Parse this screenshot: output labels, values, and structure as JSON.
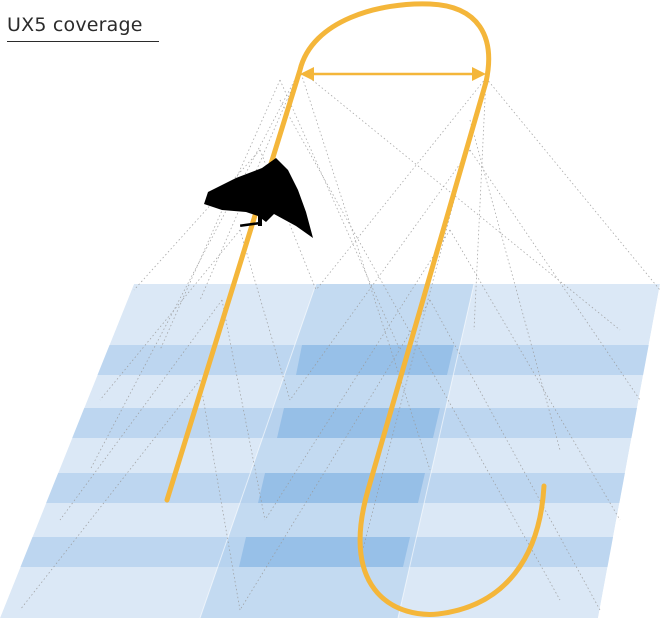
{
  "title": "UX5 coverage",
  "icons": {
    "aircraft": "fixed-wing-uav-icon"
  },
  "colors": {
    "flight_path": "#f4b63a",
    "coverage_light": "#dbe8f6",
    "coverage_mid": "#c3daf1",
    "coverage_dark": "#9fc4e8",
    "footprint_lines": "#9a9a9a",
    "aircraft": "#000000"
  }
}
